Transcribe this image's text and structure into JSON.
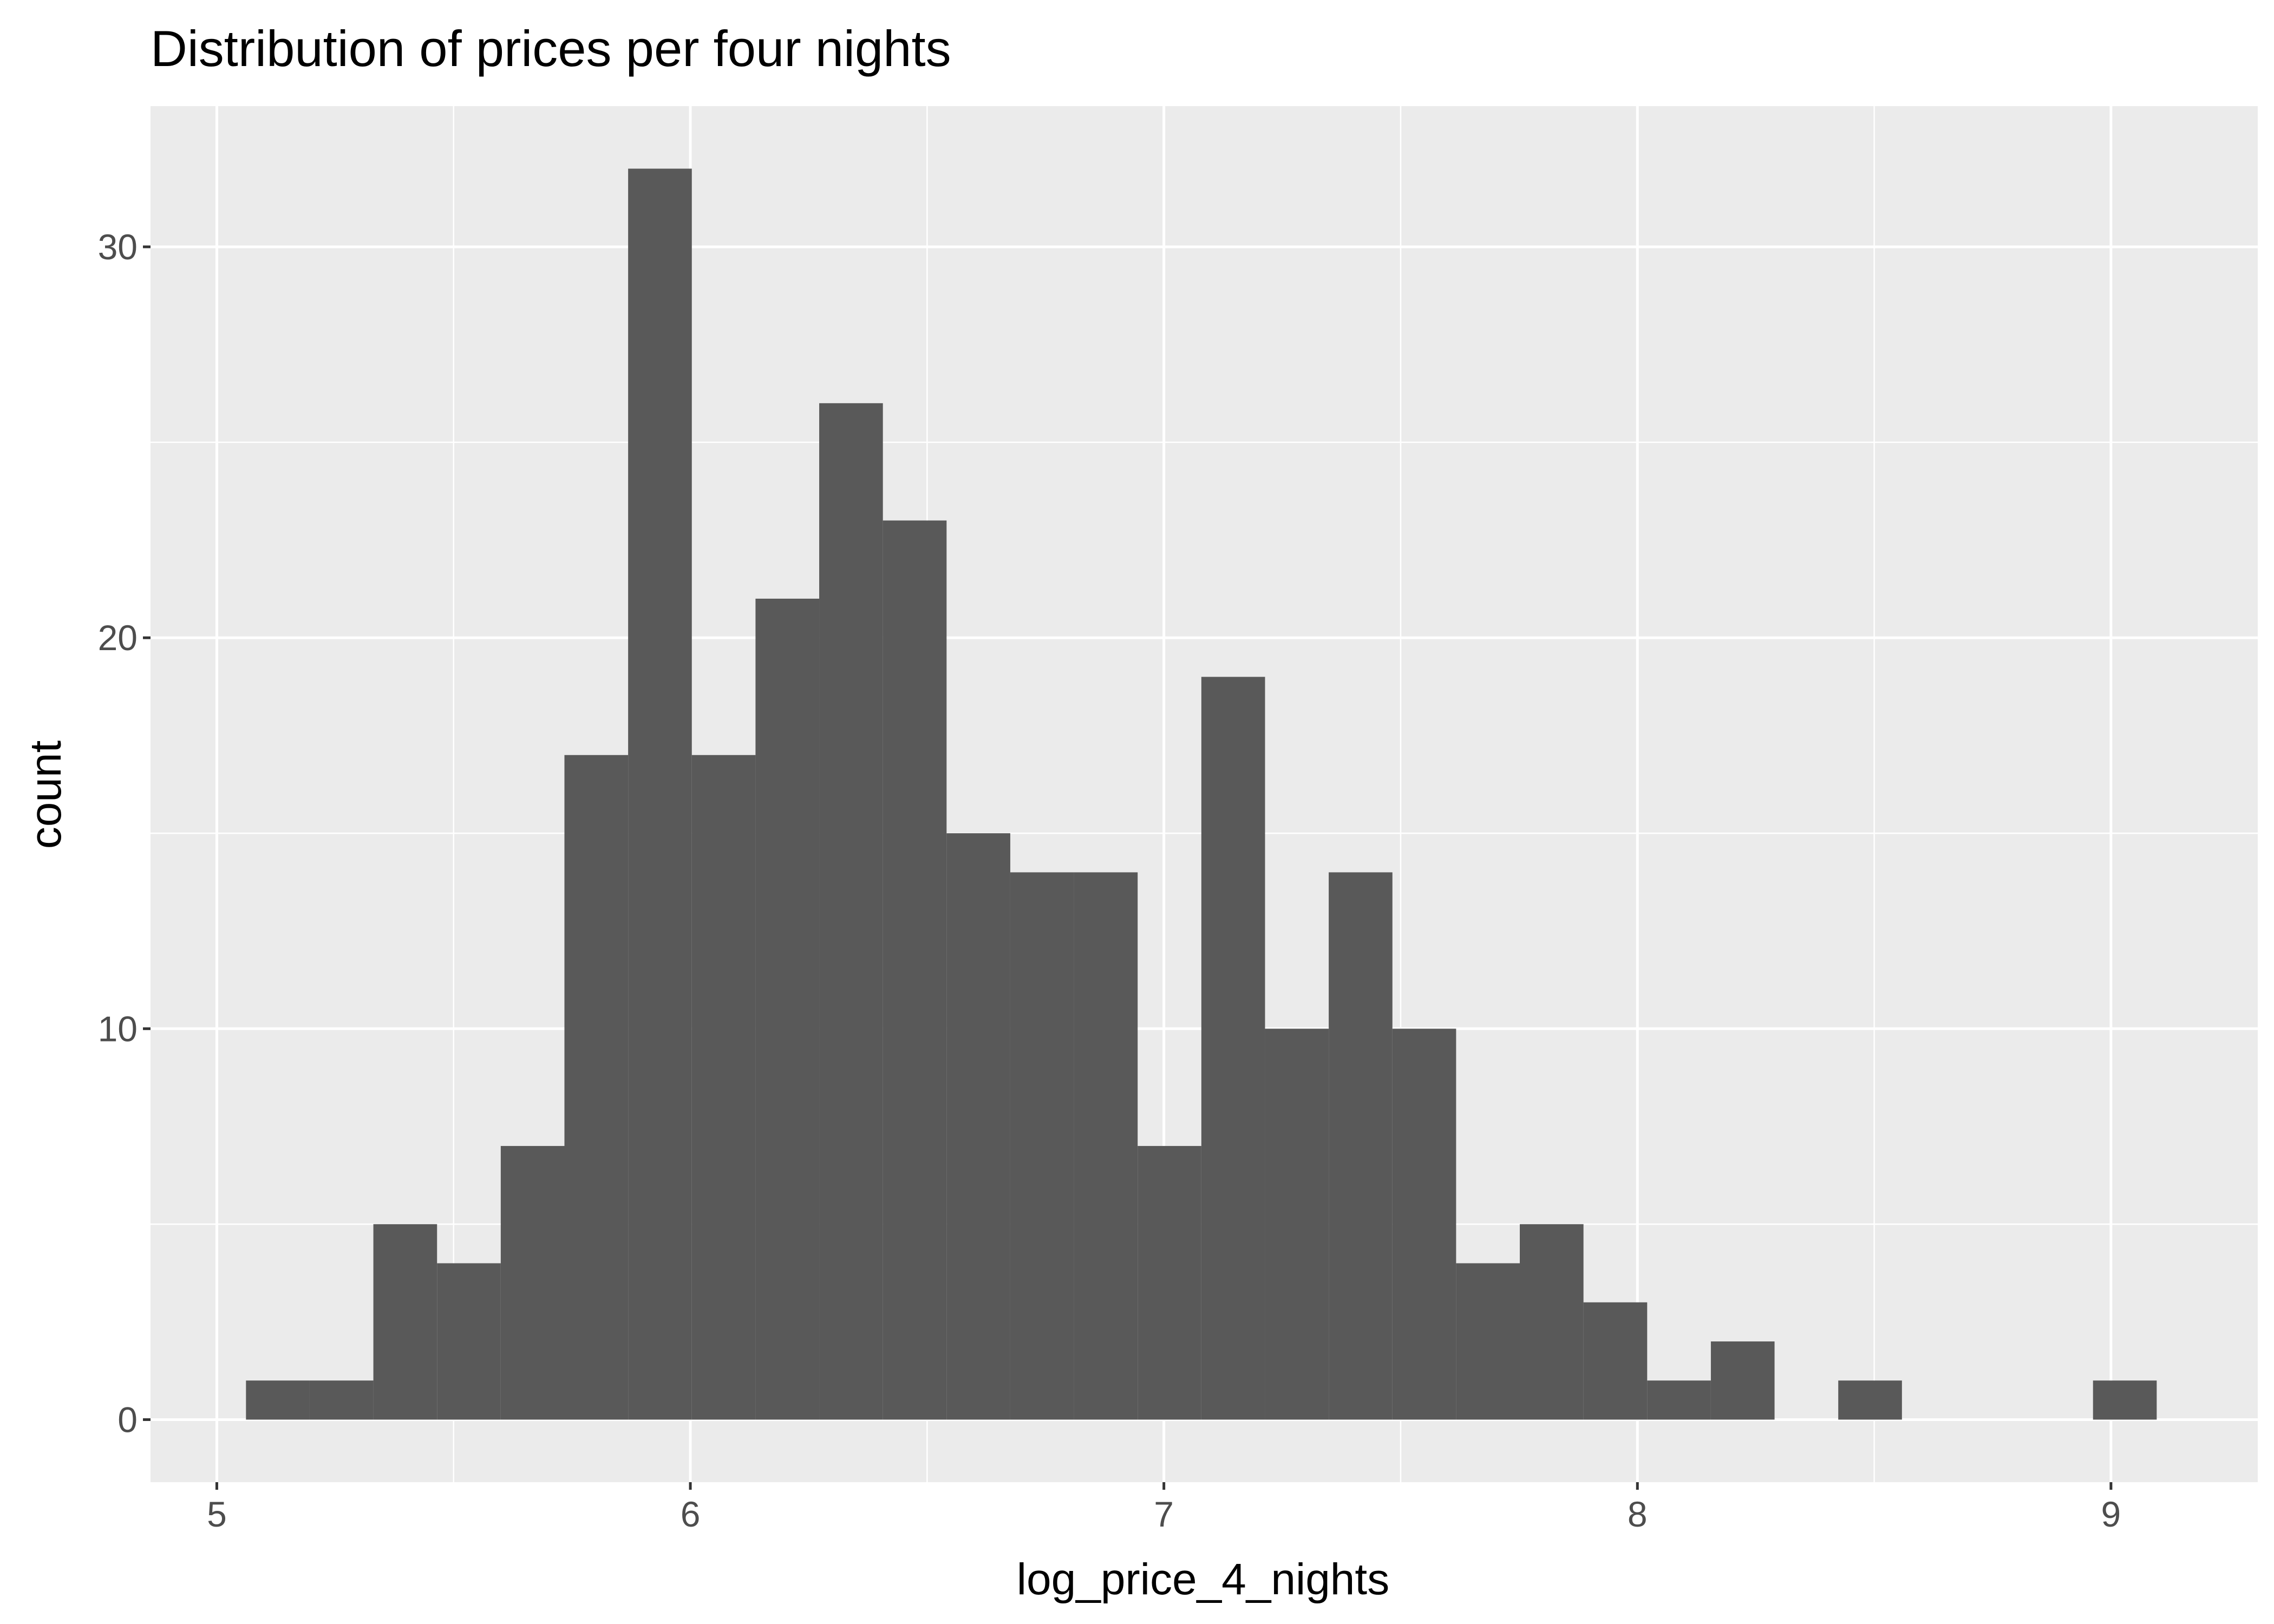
{
  "chart_data": {
    "type": "bar",
    "title": "Distribution of prices per four nights",
    "xlabel": "log_price_4_nights",
    "ylabel": "count",
    "xlim": [
      4.86,
      9.31
    ],
    "ylim": [
      -1.6,
      33.6
    ],
    "xticks": [
      5,
      6,
      7,
      8,
      9
    ],
    "yticks": [
      0,
      10,
      20,
      30
    ],
    "grid": true,
    "bin_width": 0.1345,
    "bins": [
      {
        "x0": 5.0616,
        "x1": 5.1961,
        "count": 1
      },
      {
        "x0": 5.1961,
        "x1": 5.3306,
        "count": 1
      },
      {
        "x0": 5.3306,
        "x1": 5.4651,
        "count": 5
      },
      {
        "x0": 5.4651,
        "x1": 5.5996,
        "count": 4
      },
      {
        "x0": 5.5996,
        "x1": 5.7341,
        "count": 7
      },
      {
        "x0": 5.7341,
        "x1": 5.8686,
        "count": 17
      },
      {
        "x0": 5.8686,
        "x1": 6.0031,
        "count": 32
      },
      {
        "x0": 6.0031,
        "x1": 6.1376,
        "count": 17
      },
      {
        "x0": 6.1376,
        "x1": 6.2721,
        "count": 21
      },
      {
        "x0": 6.2721,
        "x1": 6.4066,
        "count": 26
      },
      {
        "x0": 6.4066,
        "x1": 6.5411,
        "count": 23
      },
      {
        "x0": 6.5411,
        "x1": 6.6756,
        "count": 15
      },
      {
        "x0": 6.6756,
        "x1": 6.8101,
        "count": 14
      },
      {
        "x0": 6.8101,
        "x1": 6.9446,
        "count": 14
      },
      {
        "x0": 6.9446,
        "x1": 7.0791,
        "count": 7
      },
      {
        "x0": 7.0791,
        "x1": 7.2136,
        "count": 19
      },
      {
        "x0": 7.2136,
        "x1": 7.3481,
        "count": 10
      },
      {
        "x0": 7.3481,
        "x1": 7.4826,
        "count": 14
      },
      {
        "x0": 7.4826,
        "x1": 7.6171,
        "count": 10
      },
      {
        "x0": 7.6171,
        "x1": 7.7516,
        "count": 4
      },
      {
        "x0": 7.7516,
        "x1": 7.8861,
        "count": 5
      },
      {
        "x0": 7.8861,
        "x1": 8.0206,
        "count": 3
      },
      {
        "x0": 8.0206,
        "x1": 8.1551,
        "count": 1
      },
      {
        "x0": 8.1551,
        "x1": 8.2896,
        "count": 2
      },
      {
        "x0": 8.2896,
        "x1": 8.4241,
        "count": 0
      },
      {
        "x0": 8.4241,
        "x1": 8.5586,
        "count": 1
      },
      {
        "x0": 8.5586,
        "x1": 8.6931,
        "count": 0
      },
      {
        "x0": 8.6931,
        "x1": 8.8276,
        "count": 0
      },
      {
        "x0": 8.8276,
        "x1": 8.9621,
        "count": 0
      },
      {
        "x0": 8.9621,
        "x1": 9.0966,
        "count": 1
      }
    ],
    "colors": {
      "panel_background": "#ebebeb",
      "grid_line": "#ffffff",
      "bar_fill": "#595959",
      "tick_text": "#4d4d4d",
      "tick_mark": "#333333",
      "text": "#000000"
    }
  }
}
